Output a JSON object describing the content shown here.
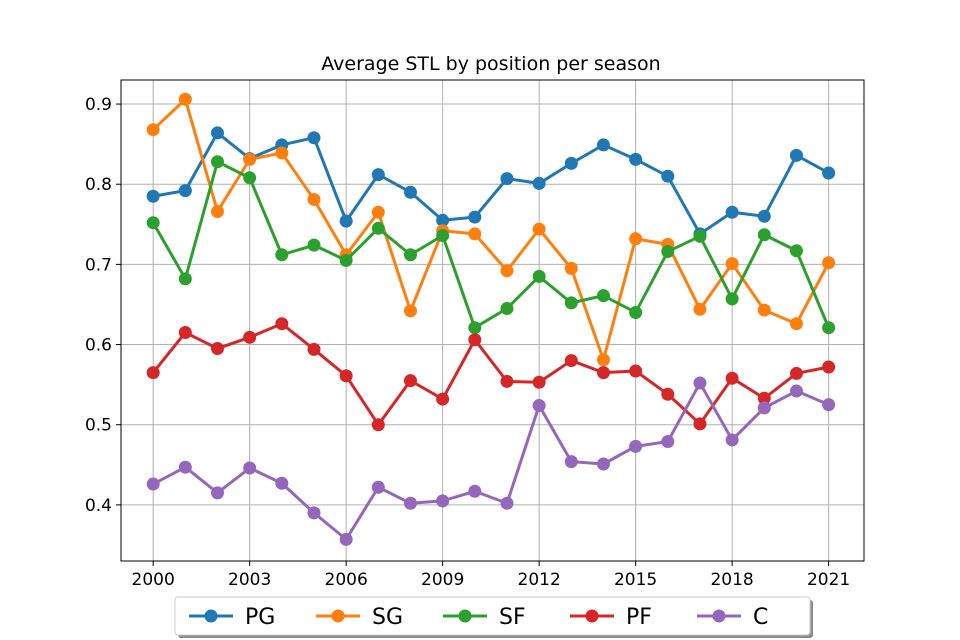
{
  "chart_data": {
    "type": "line",
    "title": "Average STL by position per season",
    "xlabel": "",
    "ylabel": "",
    "x": [
      2000,
      2001,
      2002,
      2003,
      2004,
      2005,
      2006,
      2007,
      2008,
      2009,
      2010,
      2011,
      2012,
      2013,
      2014,
      2015,
      2016,
      2017,
      2018,
      2019,
      2020,
      2021
    ],
    "xticks": [
      2000,
      2003,
      2006,
      2009,
      2012,
      2015,
      2018,
      2021
    ],
    "yticks": [
      0.4,
      0.5,
      0.6,
      0.7,
      0.8,
      0.9
    ],
    "ytick_labels": [
      "0.4",
      "0.5",
      "0.6",
      "0.7",
      "0.8",
      "0.9"
    ],
    "xlim": [
      1999.0,
      2022.1
    ],
    "ylim": [
      0.33,
      0.93
    ],
    "grid": true,
    "legend_position": "bottom-center",
    "series": [
      {
        "name": "PG",
        "color": "#1f77b4",
        "values": [
          0.785,
          0.792,
          0.864,
          0.832,
          0.849,
          0.858,
          0.754,
          0.812,
          0.79,
          0.755,
          0.759,
          0.807,
          0.801,
          0.826,
          0.849,
          0.831,
          0.81,
          0.738,
          0.765,
          0.76,
          0.836,
          0.814
        ]
      },
      {
        "name": "SG",
        "color": "#ff7f0e",
        "values": [
          0.868,
          0.906,
          0.766,
          0.831,
          0.839,
          0.781,
          0.712,
          0.765,
          0.642,
          0.742,
          0.738,
          0.692,
          0.744,
          0.695,
          0.581,
          0.732,
          0.725,
          0.644,
          0.701,
          0.643,
          0.626,
          0.702
        ]
      },
      {
        "name": "SF",
        "color": "#2ca02c",
        "values": [
          0.752,
          0.682,
          0.828,
          0.808,
          0.712,
          0.724,
          0.705,
          0.745,
          0.712,
          0.736,
          0.621,
          0.645,
          0.685,
          0.652,
          0.661,
          0.64,
          0.716,
          0.735,
          0.657,
          0.737,
          0.717,
          0.621
        ]
      },
      {
        "name": "PF",
        "color": "#d62728",
        "values": [
          0.565,
          0.615,
          0.595,
          0.609,
          0.626,
          0.594,
          0.561,
          0.5,
          0.555,
          0.532,
          0.606,
          0.554,
          0.553,
          0.58,
          0.565,
          0.567,
          0.538,
          0.501,
          0.558,
          0.533,
          0.564,
          0.572
        ]
      },
      {
        "name": "C",
        "color": "#9467bd",
        "values": [
          0.426,
          0.447,
          0.415,
          0.446,
          0.427,
          0.39,
          0.357,
          0.422,
          0.402,
          0.405,
          0.417,
          0.402,
          0.524,
          0.454,
          0.451,
          0.473,
          0.479,
          0.552,
          0.481,
          0.521,
          0.542,
          0.525
        ]
      }
    ]
  }
}
